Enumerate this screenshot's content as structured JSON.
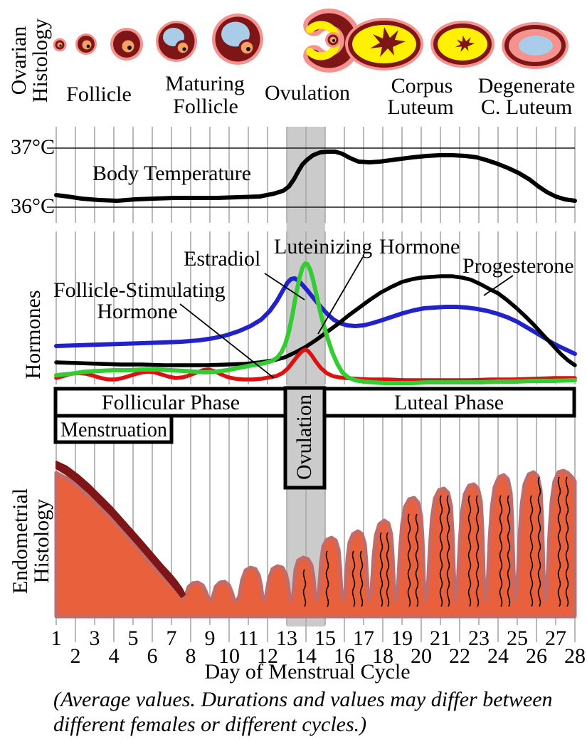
{
  "ovarian": {
    "axis_line1": "Ovarian",
    "axis_line2": "Histology",
    "labels": {
      "follicle": "Follicle",
      "maturing1": "Maturing",
      "maturing2": "Follicle",
      "ovulation": "Ovulation",
      "corpus1": "Corpus",
      "corpus2": "Luteum",
      "degenerate1": "Degenerate",
      "degenerate2": "C. Luteum"
    }
  },
  "temperature": {
    "label": "Body Temperature",
    "tick_top": "37°C",
    "tick_bottom": "36°C"
  },
  "hormones": {
    "axis_label": "Hormones",
    "estradiol": "Estradiol",
    "lh1": "Luteinizing",
    "lh2": "Hormone",
    "fsh1": "Follicle-Stimulating",
    "fsh2": "Hormone",
    "progesterone": "Progesterone"
  },
  "phases": {
    "follicular": {
      "label": "Follicular Phase",
      "day_start": 1,
      "day_end": 13
    },
    "menstruation": {
      "label": "Menstruation",
      "day_start": 1,
      "day_end": 7
    },
    "ovulation": {
      "label": "Ovulation",
      "day_start": 13,
      "day_end": 15
    },
    "luteal": {
      "label": "Luteal Phase",
      "day_start": 15,
      "day_end": 28
    }
  },
  "endometrium": {
    "axis_line1": "Endometrial",
    "axis_line2": "Histology"
  },
  "xaxis": {
    "days": [
      "1",
      "2",
      "3",
      "4",
      "5",
      "6",
      "7",
      "8",
      "9",
      "10",
      "11",
      "12",
      "13",
      "14",
      "15",
      "16",
      "17",
      "18",
      "19",
      "20",
      "21",
      "22",
      "23",
      "24",
      "25",
      "26",
      "27",
      "28"
    ],
    "title": "Day of Menstrual Cycle"
  },
  "footnote": {
    "line1": "(Average values. Durations and values may differ between",
    "line2": "different females or different cycles.)"
  },
  "colors": {
    "band": "#cbcbcb",
    "gridline": "#a9a9a9",
    "estradiol": "#2222cc",
    "lh": "#33cc33",
    "fsh": "#dd1111",
    "progesterone": "#000000",
    "temperature": "#000000",
    "follicle_pink": "#f5928e",
    "follicle_maroon": "#7e1517",
    "follicle_yellow": "#fff100",
    "antrum_blue": "#a9cce8",
    "oocyte_orange": "#f2a266",
    "endometrium_fill": "#e8613c",
    "endometrium_border": "#c26b6b",
    "endometrium_shed": "#7e1517"
  },
  "chart_data": [
    {
      "type": "line",
      "title": "Body Temperature",
      "xlabel": "Day of Menstrual Cycle",
      "ylabel": "°C",
      "ylim": [
        36,
        37
      ],
      "x": [
        1,
        2,
        3,
        4,
        5,
        6,
        7,
        8,
        9,
        10,
        11,
        12,
        13,
        14,
        15,
        16,
        17,
        18,
        19,
        20,
        21,
        22,
        23,
        24,
        25,
        26,
        27,
        28
      ],
      "series": [
        {
          "name": "Body Temperature",
          "values": [
            36.2,
            36.18,
            36.15,
            36.13,
            36.12,
            36.13,
            36.14,
            36.15,
            36.15,
            36.16,
            36.17,
            36.19,
            36.31,
            36.81,
            36.93,
            36.89,
            36.77,
            36.77,
            36.82,
            36.86,
            36.88,
            36.87,
            36.84,
            36.73,
            36.59,
            36.39,
            36.19,
            36.11
          ]
        }
      ],
      "grid": "vertical per day, horizontal at 36 and 37"
    },
    {
      "type": "line",
      "title": "Hormones",
      "xlabel": "Day of Menstrual Cycle",
      "ylabel": "Hormones (relative level, unlabeled axis)",
      "ylim": [
        0,
        100
      ],
      "x": [
        1,
        2,
        3,
        4,
        5,
        6,
        7,
        8,
        9,
        10,
        11,
        12,
        13,
        14,
        15,
        16,
        17,
        18,
        19,
        20,
        21,
        22,
        23,
        24,
        25,
        26,
        27,
        28
      ],
      "series": [
        {
          "name": "Estradiol",
          "color": "#2222cc",
          "values": [
            25,
            26,
            26,
            27,
            27,
            28,
            29,
            30,
            32,
            34,
            39,
            46,
            63,
            62,
            46,
            39,
            39,
            42,
            47,
            49,
            50,
            51,
            49,
            47,
            41,
            34,
            26,
            20
          ]
        },
        {
          "name": "Luteinizing Hormone",
          "color": "#33cc33",
          "values": [
            6,
            7,
            9,
            9,
            9,
            10,
            9,
            9,
            8,
            9,
            12,
            14,
            28,
            79,
            38,
            7,
            2,
            1,
            1,
            1,
            1,
            1,
            1,
            1,
            1,
            2,
            2,
            3
          ]
        },
        {
          "name": "Follicle-Stimulating Hormone",
          "color": "#dd1111",
          "values": [
            4,
            7,
            6,
            3,
            6,
            8,
            5,
            6,
            9,
            5,
            3,
            5,
            10,
            22,
            8,
            4,
            3,
            3,
            3,
            3,
            3,
            3,
            3,
            3,
            3,
            3,
            4,
            4
          ]
        },
        {
          "name": "Progesterone",
          "color": "#000000",
          "values": [
            14,
            14,
            14,
            13,
            13,
            13,
            13,
            13,
            13,
            13,
            14,
            15,
            18,
            25,
            33,
            42,
            52,
            61,
            67,
            69,
            70,
            70,
            66,
            60,
            50,
            40,
            23,
            13
          ]
        }
      ],
      "annotations": [
        "ovulation band shaded days 13-15"
      ]
    }
  ]
}
